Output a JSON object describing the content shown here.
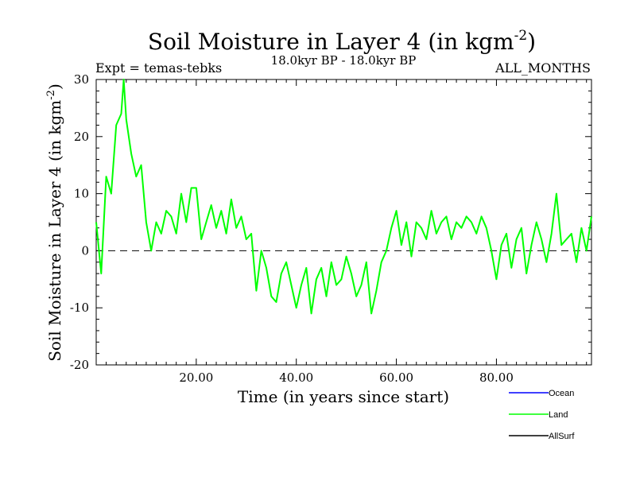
{
  "chart_data": {
    "type": "line",
    "title": "Soil Moisture in Layer 4 (in kgm",
    "title_superscript": "-2",
    "title_close": ")",
    "subtitle": "18.0kyr BP - 18.0kyr BP",
    "experiment_label": "Expt = temas-tebks",
    "months_label": "ALL_MONTHS",
    "xlabel": "Time (in years since start)",
    "ylabel": "Soil Moisture in Layer 4 (in kgm",
    "ylabel_superscript": "-2",
    "ylabel_close": ")",
    "xlim": [
      0,
      99
    ],
    "ylim": [
      -20,
      30
    ],
    "x_ticks": [
      20,
      40,
      60,
      80
    ],
    "x_tick_labels": [
      "20.00",
      "40.00",
      "60.00",
      "80.00"
    ],
    "y_ticks": [
      -20,
      -10,
      0,
      10,
      20,
      30
    ],
    "y_tick_labels": [
      "-20",
      "-10",
      "0",
      "10",
      "20",
      "30"
    ],
    "zero_line": 0,
    "legend": [
      {
        "name": "Ocean",
        "color": "#0000ff"
      },
      {
        "name": "Land",
        "color": "#00ff00"
      },
      {
        "name": "AllSurf",
        "color": "#000000"
      }
    ],
    "series": [
      {
        "name": "Land",
        "color": "#00ff00",
        "x": [
          0,
          1,
          2,
          3,
          4,
          5,
          5.5,
          6,
          7,
          8,
          9,
          10,
          11,
          12,
          13,
          14,
          15,
          16,
          17,
          18,
          19,
          20,
          21,
          22,
          23,
          24,
          25,
          26,
          27,
          28,
          29,
          30,
          31,
          32,
          33,
          34,
          35,
          36,
          37,
          38,
          39,
          40,
          41,
          42,
          43,
          44,
          45,
          46,
          47,
          48,
          49,
          50,
          51,
          52,
          53,
          54,
          55,
          56,
          57,
          58,
          59,
          60,
          61,
          62,
          63,
          64,
          65,
          66,
          67,
          68,
          69,
          70,
          71,
          72,
          73,
          74,
          75,
          76,
          77,
          78,
          79,
          80,
          81,
          82,
          83,
          84,
          85,
          86,
          87,
          88,
          89,
          90,
          91,
          92,
          93,
          94,
          95,
          96,
          97,
          98,
          99
        ],
        "values": [
          5,
          -4,
          13,
          10,
          22,
          24,
          30,
          23,
          17,
          13,
          15,
          5,
          0,
          5,
          3,
          7,
          6,
          3,
          10,
          5,
          11,
          11,
          2,
          5,
          8,
          4,
          7,
          3,
          9,
          4,
          6,
          2,
          3,
          -7,
          0,
          -3,
          -8,
          -9,
          -4,
          -2,
          -6,
          -10,
          -6,
          -3,
          -11,
          -5,
          -3,
          -8,
          -2,
          -6,
          -5,
          -1,
          -4,
          -8,
          -6,
          -2,
          -11,
          -7,
          -2,
          0,
          4,
          7,
          1,
          5,
          -1,
          5,
          4,
          2,
          7,
          3,
          5,
          6,
          2,
          5,
          4,
          6,
          5,
          3,
          6,
          4,
          0,
          -5,
          1,
          3,
          -3,
          2,
          4,
          -4,
          1,
          5,
          2,
          -2,
          3,
          10,
          1,
          2,
          3,
          -2,
          4,
          0,
          6
        ]
      }
    ]
  }
}
